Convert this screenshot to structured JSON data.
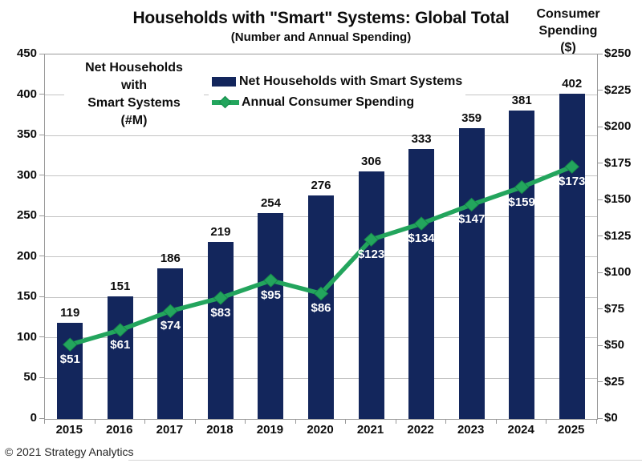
{
  "title": "Households with \"Smart\" Systems: Global Total",
  "subtitle": "(Number and Annual Spending)",
  "left_axis_title_lines": [
    "Net Households",
    "with",
    "Smart Systems",
    "(#M)"
  ],
  "right_axis_title_lines": [
    "Consumer",
    "Spending",
    "($)"
  ],
  "legend": {
    "bars_label": "Net Households with Smart Systems",
    "line_label": "Annual Consumer Spending"
  },
  "footer": "© 2021 Strategy Analytics",
  "colors": {
    "bar": "#13265c",
    "line": "#23a55d",
    "line_marker_edge": "#168a4a",
    "grid": "#c4c4c4",
    "axis": "#999999",
    "value_label_dark": "#0d0d0d",
    "value_label_light": "#ffffff"
  },
  "chart_data": {
    "type": "bar",
    "title": "Households with \"Smart\" Systems: Global Total",
    "subtitle": "(Number and Annual Spending)",
    "categories": [
      "2015",
      "2016",
      "2017",
      "2018",
      "2019",
      "2020",
      "2021",
      "2022",
      "2023",
      "2024",
      "2025"
    ],
    "series": [
      {
        "name": "Net Households with Smart Systems",
        "type": "bar",
        "axis": "left",
        "values": [
          119,
          151,
          186,
          219,
          254,
          276,
          306,
          333,
          359,
          381,
          402
        ],
        "labels": [
          "119",
          "151",
          "186",
          "219",
          "254",
          "276",
          "306",
          "333",
          "359",
          "381",
          "402"
        ]
      },
      {
        "name": "Annual Consumer Spending",
        "type": "line",
        "axis": "right",
        "values": [
          51,
          61,
          74,
          83,
          95,
          86,
          123,
          134,
          147,
          159,
          173
        ],
        "labels": [
          "$51",
          "$61",
          "$74",
          "$83",
          "$95",
          "$86",
          "$123",
          "$134",
          "$147",
          "$159",
          "$173"
        ]
      }
    ],
    "left_axis": {
      "label": "Net Households with Smart Systems (#M)",
      "min": 0,
      "max": 450,
      "step": 50,
      "ticks": [
        "0",
        "50",
        "100",
        "150",
        "200",
        "250",
        "300",
        "350",
        "400",
        "450"
      ]
    },
    "right_axis": {
      "label": "Consumer Spending ($)",
      "min": 0,
      "max": 250,
      "step": 25,
      "ticks": [
        "$0",
        "$25",
        "$50",
        "$75",
        "$100",
        "$125",
        "$150",
        "$175",
        "$200",
        "$225",
        "$250"
      ]
    },
    "grid": true,
    "legend_position": "top-inside"
  }
}
